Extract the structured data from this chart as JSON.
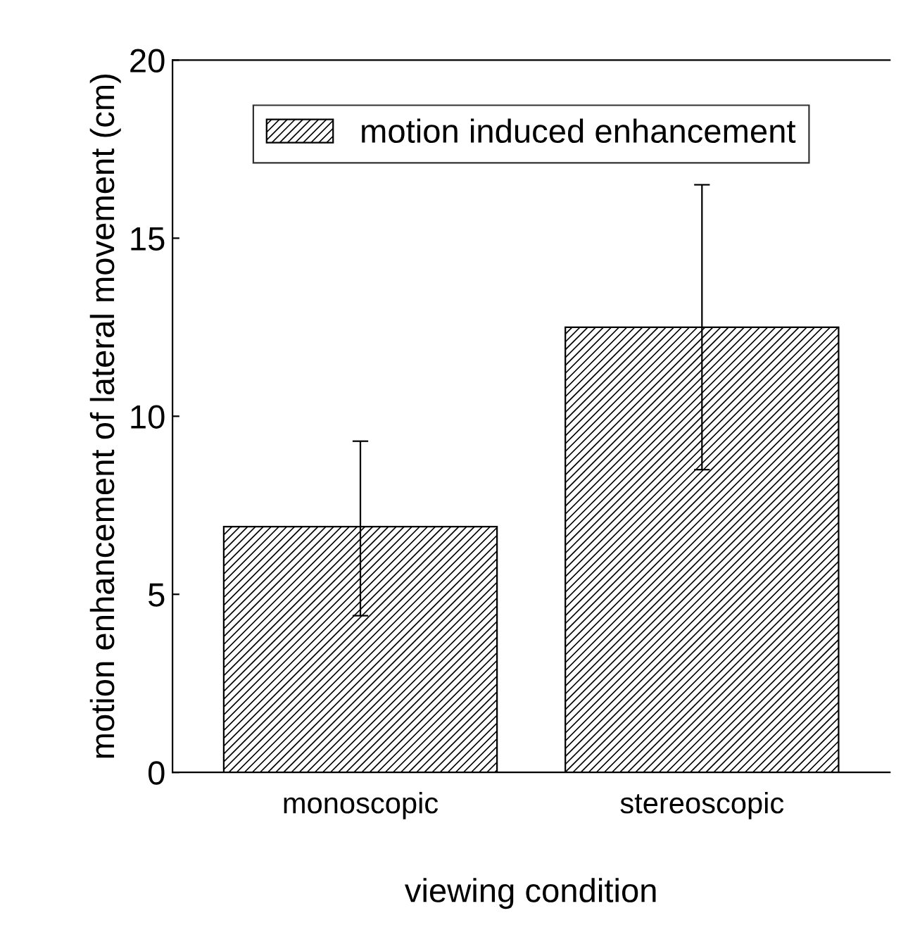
{
  "chart_data": {
    "type": "bar",
    "xlabel": "viewing condition",
    "ylabel": "motion enhancement of lateral movement (cm)",
    "categories": [
      "monoscopic",
      "stereoscopic"
    ],
    "series": [
      {
        "name": "motion induced enhancement",
        "color": "#000000",
        "values": [
          6.9,
          12.5
        ],
        "errors": [
          [
            4.4,
            9.3
          ],
          [
            8.5,
            16.5
          ]
        ]
      }
    ],
    "ylim": [
      0,
      20
    ],
    "yticks": [
      0,
      5,
      10,
      15,
      20
    ],
    "grid": false,
    "legend": "top"
  }
}
